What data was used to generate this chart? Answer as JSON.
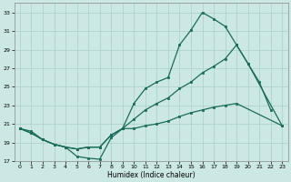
{
  "xlabel": "Humidex (Indice chaleur)",
  "bg_color": "#cce8e4",
  "grid_color": "#aaceca",
  "line_color": "#1a6b5a",
  "xlim": [
    -0.5,
    23.5
  ],
  "ylim": [
    17,
    34
  ],
  "yticks": [
    17,
    19,
    21,
    23,
    25,
    27,
    29,
    31,
    33
  ],
  "xticks": [
    0,
    1,
    2,
    3,
    4,
    5,
    6,
    7,
    8,
    9,
    10,
    11,
    12,
    13,
    14,
    15,
    16,
    17,
    18,
    19,
    20,
    21,
    22,
    23
  ],
  "line1_x": [
    0,
    1,
    2,
    3,
    4,
    5,
    6,
    7,
    8,
    9,
    10,
    11,
    12,
    13,
    14,
    15,
    16,
    17,
    18,
    19,
    20,
    21,
    22
  ],
  "line1_y": [
    20.5,
    20.0,
    19.3,
    18.8,
    18.5,
    17.5,
    17.3,
    17.2,
    19.5,
    20.5,
    23.2,
    24.8,
    25.5,
    26.0,
    29.5,
    31.1,
    33.0,
    32.3,
    31.5,
    29.5,
    27.5,
    25.5,
    22.5
  ],
  "line2_x": [
    0,
    1,
    2,
    3,
    4,
    5,
    6,
    7,
    8,
    9,
    10,
    11,
    12,
    13,
    14,
    15,
    16,
    17,
    18,
    19,
    20,
    23
  ],
  "line2_y": [
    20.5,
    20.0,
    19.3,
    18.8,
    18.5,
    18.3,
    18.5,
    18.5,
    19.8,
    20.5,
    21.5,
    22.5,
    23.2,
    23.8,
    24.8,
    25.5,
    26.5,
    27.2,
    28.0,
    29.5,
    27.5,
    20.8
  ],
  "line3_x": [
    0,
    1,
    2,
    3,
    4,
    5,
    6,
    7,
    8,
    9,
    10,
    11,
    12,
    13,
    14,
    15,
    16,
    17,
    18,
    19,
    23
  ],
  "line3_y": [
    20.5,
    20.2,
    19.3,
    18.8,
    18.5,
    18.3,
    18.5,
    18.5,
    19.8,
    20.5,
    20.5,
    20.8,
    21.0,
    21.3,
    21.8,
    22.2,
    22.5,
    22.8,
    23.0,
    23.2,
    20.8
  ]
}
